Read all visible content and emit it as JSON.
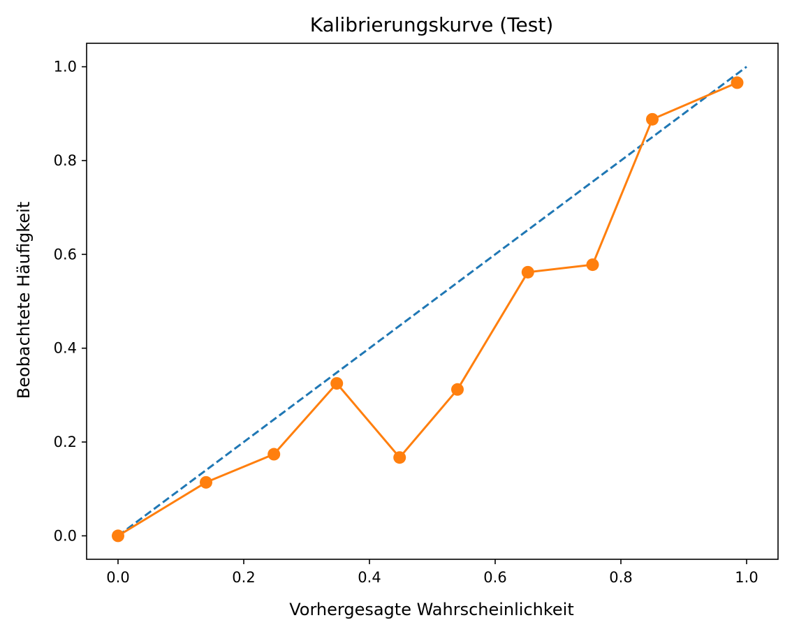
{
  "chart_data": {
    "type": "line",
    "title": "Kalibrierungskurve (Test)",
    "xlabel": "Vorhergesagte Wahrscheinlichkeit",
    "ylabel": "Beobachtete Häufigkeit",
    "xlim": [
      -0.05,
      1.05
    ],
    "ylim": [
      -0.05,
      1.05
    ],
    "xticks": [
      0.0,
      0.2,
      0.4,
      0.6,
      0.8,
      1.0
    ],
    "yticks": [
      0.0,
      0.2,
      0.4,
      0.6,
      0.8,
      1.0
    ],
    "xtick_labels": [
      "0.0",
      "0.2",
      "0.4",
      "0.6",
      "0.8",
      "1.0"
    ],
    "ytick_labels": [
      "0.0",
      "0.2",
      "0.4",
      "0.6",
      "0.8",
      "1.0"
    ],
    "grid": false,
    "series": [
      {
        "style": "dashed",
        "color": "#1f77b4",
        "x": [
          0.0,
          1.0
        ],
        "y": [
          0.0,
          1.0
        ]
      },
      {
        "style": "solid-markers",
        "color": "#ff7f0e",
        "x": [
          0.0,
          0.14,
          0.248,
          0.348,
          0.448,
          0.54,
          0.652,
          0.755,
          0.85,
          0.985
        ],
        "y": [
          0.0,
          0.114,
          0.174,
          0.325,
          0.167,
          0.312,
          0.562,
          0.578,
          0.888,
          0.966
        ]
      }
    ]
  }
}
